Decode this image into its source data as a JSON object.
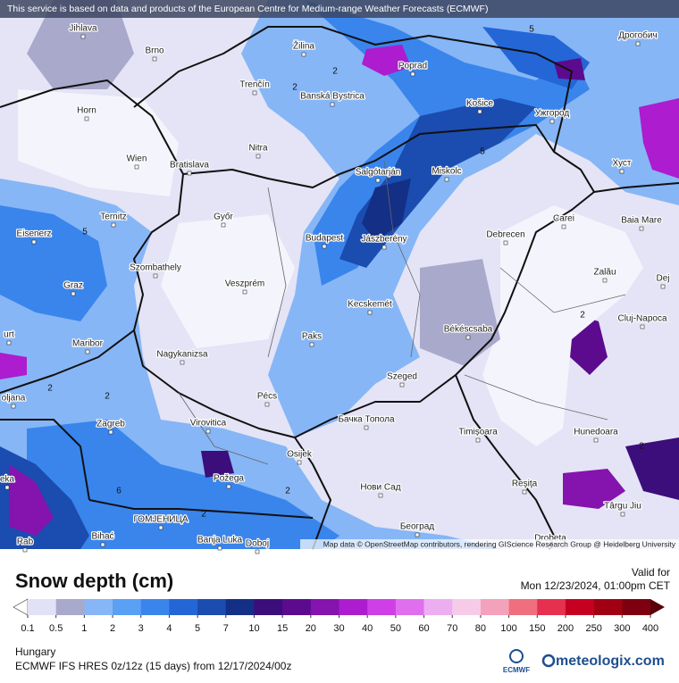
{
  "banner": "This service is based on data and products of the European Centre for Medium-range Weather Forecasts (ECMWF)",
  "attribution": "Map data © OpenStreetMap contributors, rendering GIScience Research Group @ Heidelberg University",
  "map": {
    "cities": [
      "Jihlava",
      "Brno",
      "Žilina",
      "Poprad",
      "Дрогобич",
      "Trenčín",
      "Banská Bystrica",
      "Horn",
      "Košice",
      "Ужгород",
      "Nitra",
      "Wien",
      "Bratislava",
      "Salgótarján",
      "Miskolc",
      "Хуст",
      "Ternitz",
      "Győr",
      "Carei",
      "Baia Mare",
      "Eisenerz",
      "Budapest",
      "Jászberény",
      "Debrecen",
      "Szombathely",
      "Zalău",
      "Graz",
      "Veszprém",
      "Dej",
      "Kecskemét",
      "Cluj-Napoca",
      "Békéscsaba",
      "Paks",
      "Maribor",
      "Nagykanizsa",
      "Szeged",
      "oljana",
      "Pécs",
      "Zagreb",
      "Virovitica",
      "Бачка Топола",
      "Timișoara",
      "Hunedoara",
      "Osijek",
      "Požega",
      "Reşiţa",
      "Нови Сад",
      "Târgu Jiu",
      "ГОМЈЕНИЦА",
      "Banja Luka",
      "Bihać",
      "Doboj",
      "Београд",
      "Drobeta",
      "urt",
      "eka",
      "Rab"
    ],
    "contour_labels": [
      5,
      2,
      2,
      5,
      5,
      2,
      2,
      2,
      2,
      6,
      2,
      2
    ]
  },
  "legend": {
    "title": "Snow depth (cm)",
    "ticks": [
      0.1,
      0.5,
      1,
      2,
      3,
      4,
      5,
      7,
      10,
      15,
      20,
      30,
      40,
      50,
      60,
      70,
      80,
      100,
      150,
      200,
      250,
      300,
      400
    ],
    "colors": [
      "#ffffff",
      "#e2e2f6",
      "#a9a9cc",
      "#86b6f6",
      "#5aa0f4",
      "#3a85ec",
      "#2466d6",
      "#1b4cb0",
      "#132f86",
      "#3b0e7c",
      "#5c0b8e",
      "#8513ae",
      "#ad1ccf",
      "#cf3fe6",
      "#e06fee",
      "#ecaef0",
      "#f6cbe8",
      "#f4a2bb",
      "#ef6f7f",
      "#e5304f",
      "#c70022",
      "#a10012",
      "#7e0010",
      "#5a0008"
    ]
  },
  "valid": {
    "label": "Valid for",
    "time": "Mon 12/23/2024, 01:00pm CET"
  },
  "region": "Hungary",
  "model": "ECMWF IFS HRES 0z/12z (15 days) from  12/17/2024/00z",
  "ecmwf": "ECMWF",
  "brand": "meteologix.com"
}
